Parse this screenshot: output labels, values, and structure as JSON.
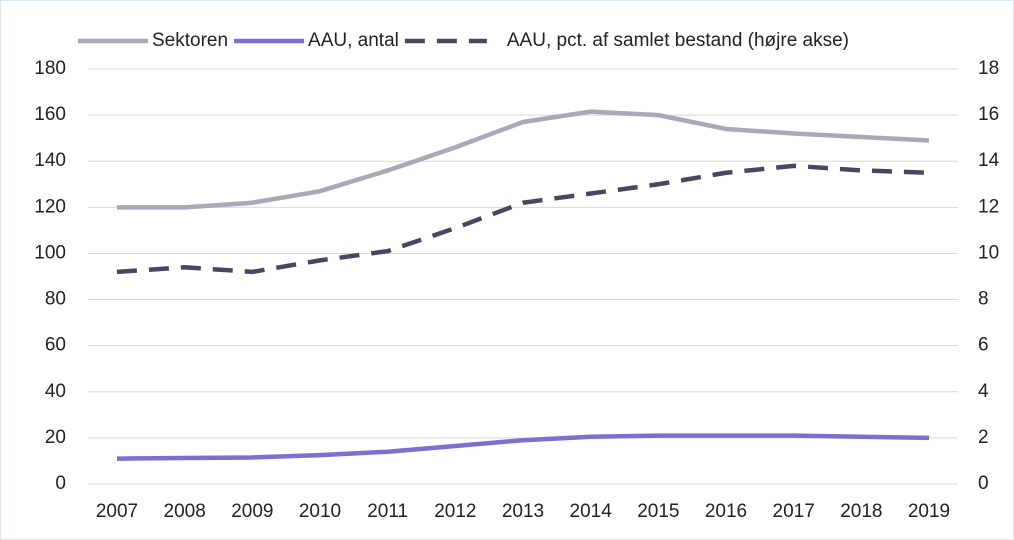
{
  "chart_data": {
    "type": "line",
    "x": [
      2007,
      2008,
      2009,
      2010,
      2011,
      2012,
      2013,
      2014,
      2015,
      2016,
      2017,
      2018,
      2019
    ],
    "series": [
      {
        "name": "Sektoren",
        "color": "#a9a7b8",
        "values": [
          120,
          120,
          122,
          127,
          136,
          146,
          157,
          161.5,
          160,
          154,
          152,
          150.5,
          149
        ]
      },
      {
        "name": "AAU, antal",
        "color": "#7b6fd0",
        "values": [
          11,
          11.3,
          11.5,
          12.5,
          14,
          16.5,
          19,
          20.5,
          21,
          21,
          21,
          20.5,
          20
        ]
      },
      {
        "name": "AAU, pct. af samlet bestand (højre akse)",
        "color": "#4a4560",
        "dashed": true,
        "axis": "y2",
        "values": [
          9.2,
          9.4,
          9.2,
          9.7,
          10.1,
          11.1,
          12.2,
          12.6,
          13.0,
          13.5,
          13.8,
          13.6,
          13.5
        ]
      }
    ],
    "ylim": [
      0,
      180
    ],
    "yticks": [
      0,
      20,
      40,
      60,
      80,
      100,
      120,
      140,
      160,
      180
    ],
    "y2lim": [
      0,
      18
    ],
    "y2ticks": [
      0,
      2,
      4,
      6,
      8,
      10,
      12,
      14,
      16,
      18
    ],
    "grid": true,
    "legend": "top"
  }
}
